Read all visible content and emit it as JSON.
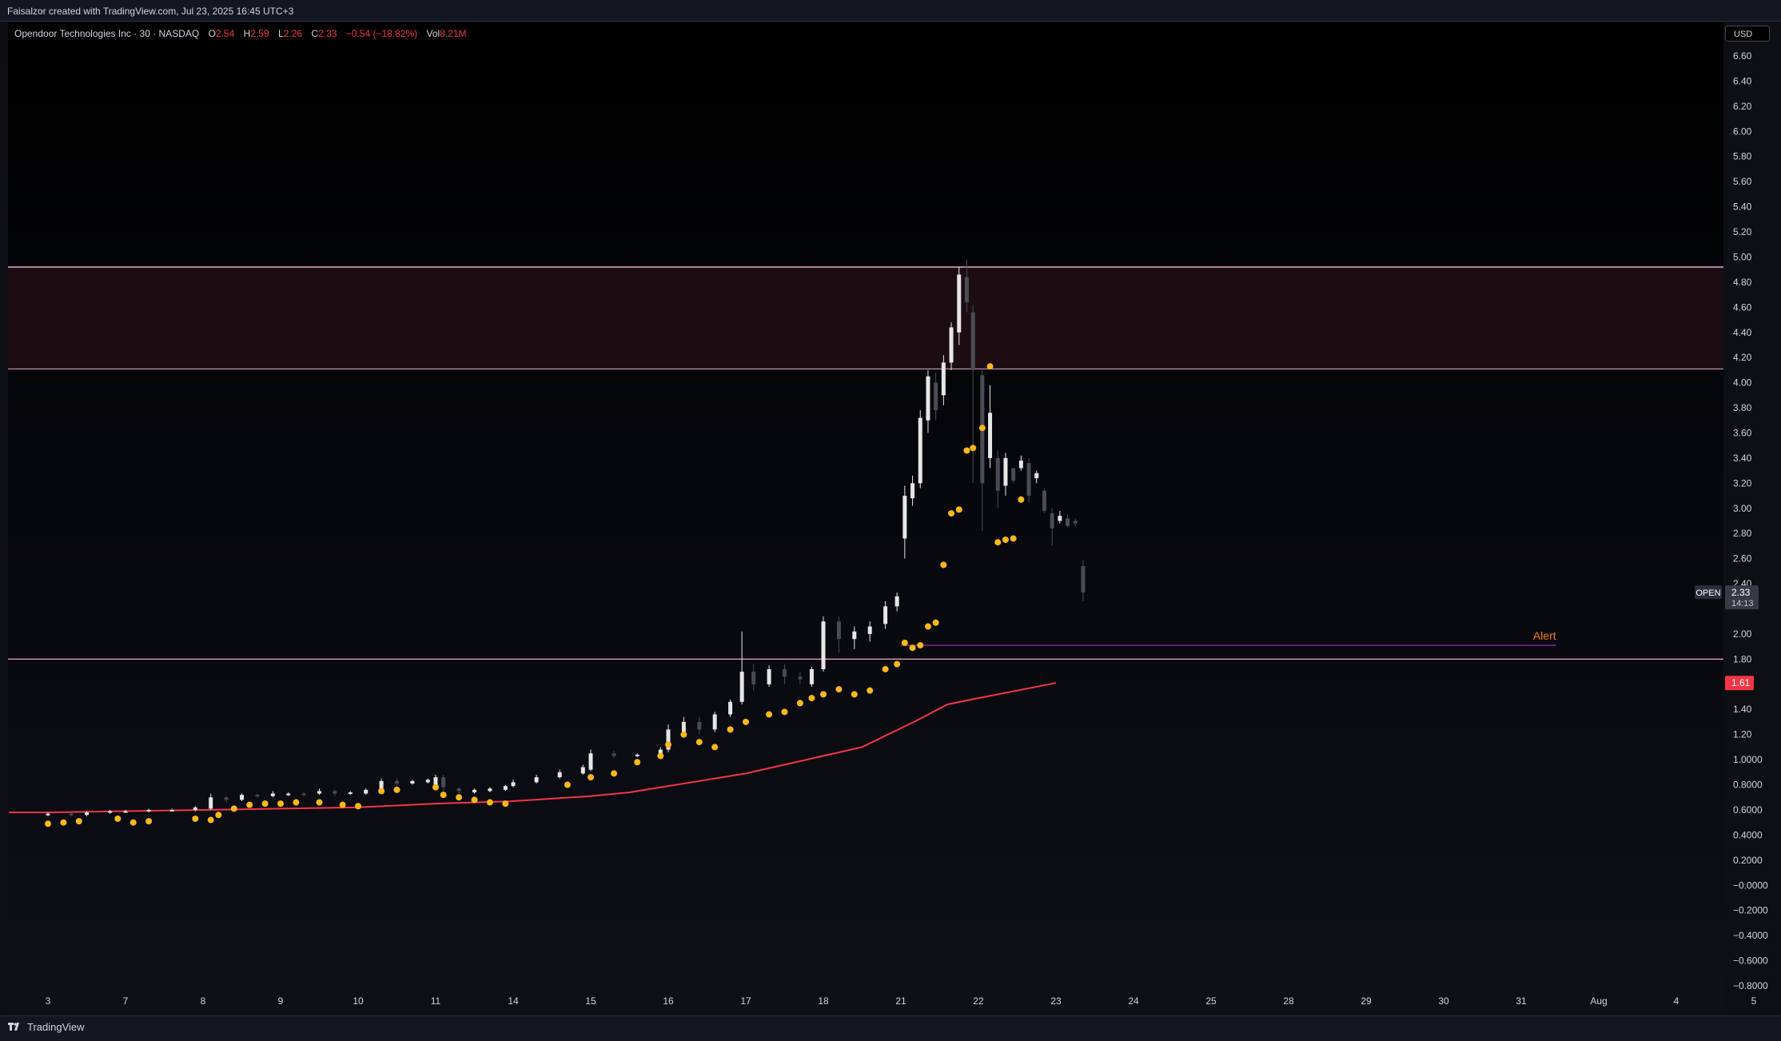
{
  "header": {
    "caption": "Faisalzor created with TradingView.com, Jul 23, 2025 16:45 UTC+3"
  },
  "legend": {
    "symbol": "Opendoor Technologies Inc · 30 · NASDAQ",
    "o_label": "O",
    "o_value": "2.54",
    "h_label": "H",
    "h_value": "2.59",
    "l_label": "L",
    "l_value": "2.26",
    "c_label": "C",
    "c_value": "2.33",
    "change": "−0.54 (−18.82%)",
    "vol_label": "Vol",
    "vol_value": "8.21M"
  },
  "currency_button": "USD",
  "footer": {
    "brand": "TradingView",
    "logo_icon": "tradingview-logo-icon"
  },
  "colors": {
    "background_top": "#000000",
    "background_bottom": "#0e1018",
    "candle_up": "#e6e6e6",
    "candle_down": "#4a4c54",
    "moving_average": "#f23645",
    "signal_dot": "#f9b81b",
    "zone_line": "#e2a6d8",
    "zone_fill": "#1c0d13",
    "support_line": "#f0a8b8",
    "alert_line": "#9c27b0",
    "alert_text": "#f57c00",
    "ma_badge": "#f23645"
  },
  "chart_data": {
    "type": "candlestick",
    "y_axis": {
      "min": -0.86,
      "max": 6.72,
      "ticks": [
        "6.60",
        "6.40",
        "6.20",
        "6.00",
        "5.80",
        "5.60",
        "5.40",
        "5.20",
        "5.00",
        "4.80",
        "4.60",
        "4.40",
        "4.20",
        "4.00",
        "3.80",
        "3.60",
        "3.40",
        "3.20",
        "3.00",
        "2.80",
        "2.60",
        "2.40",
        "2.00",
        "1.80",
        "1.40",
        "1.20",
        "1.0000",
        "0.8000",
        "0.6000",
        "0.4000",
        "0.2000",
        "−0.0000",
        "−0.2000",
        "−0.4000",
        "−0.6000",
        "−0.8000"
      ]
    },
    "x_axis": {
      "ticks": [
        "3",
        "7",
        "8",
        "9",
        "10",
        "11",
        "14",
        "15",
        "16",
        "17",
        "18",
        "21",
        "22",
        "23",
        "24",
        "25",
        "28",
        "29",
        "30",
        "31",
        "Aug",
        "4",
        "5"
      ]
    },
    "zones": [
      {
        "from": 4.11,
        "to": 4.92
      }
    ],
    "horizontal_lines": [
      {
        "value": 1.8
      }
    ],
    "alert": {
      "label": "Alert",
      "value": 1.91,
      "start_x": 11,
      "end_x": 19.45
    },
    "current_price": {
      "tag": "OPEN",
      "price": "2.33",
      "countdown": "14:13",
      "value": 2.33
    },
    "moving_average": {
      "badge": "1.61",
      "points": [
        [
          -0.5,
          0.58
        ],
        [
          0,
          0.58
        ],
        [
          1,
          0.59
        ],
        [
          2,
          0.6
        ],
        [
          3,
          0.61
        ],
        [
          4,
          0.62
        ],
        [
          5,
          0.65
        ],
        [
          6,
          0.67
        ],
        [
          7,
          0.71
        ],
        [
          7.5,
          0.74
        ],
        [
          8,
          0.79
        ],
        [
          8.5,
          0.84
        ],
        [
          9,
          0.89
        ],
        [
          9.5,
          0.96
        ],
        [
          10,
          1.03
        ],
        [
          10.5,
          1.1
        ],
        [
          10.8,
          1.19
        ],
        [
          11.2,
          1.31
        ],
        [
          11.6,
          1.44
        ],
        [
          12,
          1.49
        ],
        [
          12.5,
          1.55
        ],
        [
          13,
          1.61
        ]
      ]
    },
    "candles": [
      [
        0,
        0.56,
        0.57,
        0.55,
        0.58
      ],
      [
        0.3,
        0.57,
        0.56,
        0.55,
        0.58
      ],
      [
        0.5,
        0.56,
        0.58,
        0.55,
        0.59
      ],
      [
        0.8,
        0.58,
        0.59,
        0.57,
        0.6
      ],
      [
        1,
        0.59,
        0.59,
        0.58,
        0.6
      ],
      [
        1.3,
        0.59,
        0.6,
        0.58,
        0.61
      ],
      [
        1.6,
        0.6,
        0.6,
        0.59,
        0.61
      ],
      [
        1.9,
        0.6,
        0.62,
        0.59,
        0.63
      ],
      [
        2.1,
        0.61,
        0.7,
        0.6,
        0.73
      ],
      [
        2.3,
        0.7,
        0.68,
        0.66,
        0.71
      ],
      [
        2.5,
        0.68,
        0.72,
        0.67,
        0.73
      ],
      [
        2.7,
        0.72,
        0.71,
        0.7,
        0.73
      ],
      [
        2.9,
        0.71,
        0.73,
        0.7,
        0.75
      ],
      [
        3.1,
        0.72,
        0.73,
        0.71,
        0.74
      ],
      [
        3.3,
        0.73,
        0.72,
        0.71,
        0.74
      ],
      [
        3.5,
        0.73,
        0.75,
        0.72,
        0.77
      ],
      [
        3.7,
        0.75,
        0.73,
        0.71,
        0.76
      ],
      [
        3.9,
        0.73,
        0.74,
        0.72,
        0.75
      ],
      [
        4.1,
        0.73,
        0.76,
        0.72,
        0.77
      ],
      [
        4.3,
        0.76,
        0.83,
        0.75,
        0.85
      ],
      [
        4.5,
        0.83,
        0.81,
        0.79,
        0.85
      ],
      [
        4.7,
        0.81,
        0.83,
        0.8,
        0.84
      ],
      [
        4.9,
        0.82,
        0.84,
        0.81,
        0.85
      ],
      [
        5,
        0.8,
        0.86,
        0.79,
        0.88
      ],
      [
        5.1,
        0.86,
        0.78,
        0.75,
        0.88
      ],
      [
        5.3,
        0.77,
        0.75,
        0.73,
        0.78
      ],
      [
        5.5,
        0.74,
        0.76,
        0.73,
        0.77
      ],
      [
        5.7,
        0.75,
        0.77,
        0.74,
        0.78
      ],
      [
        5.9,
        0.76,
        0.79,
        0.75,
        0.8
      ],
      [
        6,
        0.79,
        0.82,
        0.78,
        0.84
      ],
      [
        6.3,
        0.82,
        0.86,
        0.81,
        0.88
      ],
      [
        6.6,
        0.86,
        0.9,
        0.85,
        0.92
      ],
      [
        6.9,
        0.89,
        0.94,
        0.88,
        0.96
      ],
      [
        7,
        0.92,
        1.05,
        0.91,
        1.08
      ],
      [
        7.3,
        1.05,
        1.03,
        1.01,
        1.07
      ],
      [
        7.6,
        1.03,
        1.04,
        1.02,
        1.05
      ],
      [
        7.9,
        1.04,
        1.08,
        1.03,
        1.1
      ],
      [
        8,
        1.08,
        1.24,
        1.06,
        1.28
      ],
      [
        8.2,
        1.22,
        1.3,
        1.2,
        1.34
      ],
      [
        8.4,
        1.3,
        1.24,
        1.2,
        1.34
      ],
      [
        8.6,
        1.24,
        1.36,
        1.22,
        1.38
      ],
      [
        8.8,
        1.36,
        1.46,
        1.34,
        1.48
      ],
      [
        8.95,
        1.46,
        1.7,
        1.44,
        2.02
      ],
      [
        9.1,
        1.7,
        1.6,
        1.55,
        1.76
      ],
      [
        9.3,
        1.6,
        1.72,
        1.58,
        1.75
      ],
      [
        9.5,
        1.72,
        1.66,
        1.6,
        1.76
      ],
      [
        9.7,
        1.66,
        1.64,
        1.6,
        1.7
      ],
      [
        9.85,
        1.6,
        1.72,
        1.58,
        1.74
      ],
      [
        10,
        1.72,
        2.1,
        1.7,
        2.14
      ],
      [
        10.2,
        2.1,
        1.96,
        1.85,
        2.14
      ],
      [
        10.4,
        1.96,
        2.02,
        1.88,
        2.06
      ],
      [
        10.6,
        2.0,
        2.06,
        1.94,
        2.1
      ],
      [
        10.8,
        2.08,
        2.22,
        2.04,
        2.26
      ],
      [
        10.95,
        2.22,
        2.3,
        2.18,
        2.33
      ],
      [
        11.05,
        2.76,
        3.1,
        2.6,
        3.18
      ],
      [
        11.15,
        3.08,
        3.2,
        3.02,
        3.26
      ],
      [
        11.25,
        3.2,
        3.72,
        3.16,
        3.78
      ],
      [
        11.35,
        3.7,
        4.05,
        3.6,
        4.1
      ],
      [
        11.45,
        4.0,
        3.78,
        3.7,
        4.08
      ],
      [
        11.55,
        3.9,
        4.16,
        3.82,
        4.22
      ],
      [
        11.65,
        4.16,
        4.44,
        4.1,
        4.48
      ],
      [
        11.75,
        4.4,
        4.86,
        4.3,
        4.92
      ],
      [
        11.85,
        4.84,
        4.64,
        4.56,
        4.98
      ],
      [
        11.93,
        4.56,
        4.1,
        3.2,
        4.62
      ],
      [
        12.05,
        4.06,
        3.2,
        2.82,
        4.1
      ],
      [
        12.15,
        3.4,
        3.76,
        3.32,
        3.98
      ],
      [
        12.25,
        3.4,
        3.14,
        3.0,
        3.46
      ],
      [
        12.35,
        3.18,
        3.4,
        3.1,
        3.44
      ],
      [
        12.45,
        3.32,
        3.22,
        3.2,
        3.3
      ],
      [
        12.55,
        3.32,
        3.38,
        3.3,
        3.42
      ],
      [
        12.65,
        3.36,
        3.1,
        3.05,
        3.4
      ],
      [
        12.75,
        3.24,
        3.28,
        3.2,
        3.3
      ],
      [
        12.85,
        3.14,
        2.98,
        2.96,
        3.16
      ],
      [
        12.95,
        2.96,
        2.84,
        2.7,
        3.0
      ],
      [
        13.05,
        2.9,
        2.94,
        2.88,
        2.98
      ],
      [
        13.15,
        2.92,
        2.86,
        2.85,
        2.95
      ],
      [
        13.25,
        2.9,
        2.88,
        2.86,
        2.92
      ],
      [
        13.35,
        2.54,
        2.33,
        2.26,
        2.59
      ]
    ],
    "signal_points": [
      [
        0,
        0.49
      ],
      [
        0.2,
        0.5
      ],
      [
        0.4,
        0.51
      ],
      [
        0.9,
        0.53
      ],
      [
        1.1,
        0.5
      ],
      [
        1.3,
        0.51
      ],
      [
        1.9,
        0.53
      ],
      [
        2.1,
        0.52
      ],
      [
        2.2,
        0.56
      ],
      [
        2.4,
        0.61
      ],
      [
        2.6,
        0.64
      ],
      [
        2.8,
        0.65
      ],
      [
        3,
        0.65
      ],
      [
        3.2,
        0.66
      ],
      [
        3.5,
        0.66
      ],
      [
        3.8,
        0.64
      ],
      [
        4,
        0.63
      ],
      [
        4.3,
        0.75
      ],
      [
        4.5,
        0.76
      ],
      [
        5,
        0.78
      ],
      [
        5.1,
        0.72
      ],
      [
        5.3,
        0.7
      ],
      [
        5.5,
        0.68
      ],
      [
        5.7,
        0.66
      ],
      [
        5.9,
        0.65
      ],
      [
        6.7,
        0.8
      ],
      [
        7,
        0.86
      ],
      [
        7.3,
        0.89
      ],
      [
        7.6,
        0.98
      ],
      [
        7.9,
        1.03
      ],
      [
        8,
        1.12
      ],
      [
        8.2,
        1.2
      ],
      [
        8.4,
        1.14
      ],
      [
        8.6,
        1.1
      ],
      [
        8.8,
        1.24
      ],
      [
        9,
        1.3
      ],
      [
        9.3,
        1.36
      ],
      [
        9.5,
        1.38
      ],
      [
        9.7,
        1.45
      ],
      [
        9.85,
        1.49
      ],
      [
        10,
        1.52
      ],
      [
        10.2,
        1.56
      ],
      [
        10.4,
        1.52
      ],
      [
        10.6,
        1.55
      ],
      [
        10.8,
        1.72
      ],
      [
        10.95,
        1.76
      ],
      [
        11.05,
        1.93
      ],
      [
        11.15,
        1.89
      ],
      [
        11.25,
        1.91
      ],
      [
        11.35,
        2.06
      ],
      [
        11.45,
        2.09
      ],
      [
        11.55,
        2.55
      ],
      [
        11.65,
        2.96
      ],
      [
        11.75,
        2.99
      ],
      [
        11.85,
        3.46
      ],
      [
        11.93,
        3.48
      ],
      [
        12.05,
        3.64
      ],
      [
        12.15,
        4.13
      ],
      [
        12.25,
        2.73
      ],
      [
        12.35,
        2.75
      ],
      [
        12.45,
        2.76
      ],
      [
        12.55,
        3.07
      ]
    ]
  }
}
